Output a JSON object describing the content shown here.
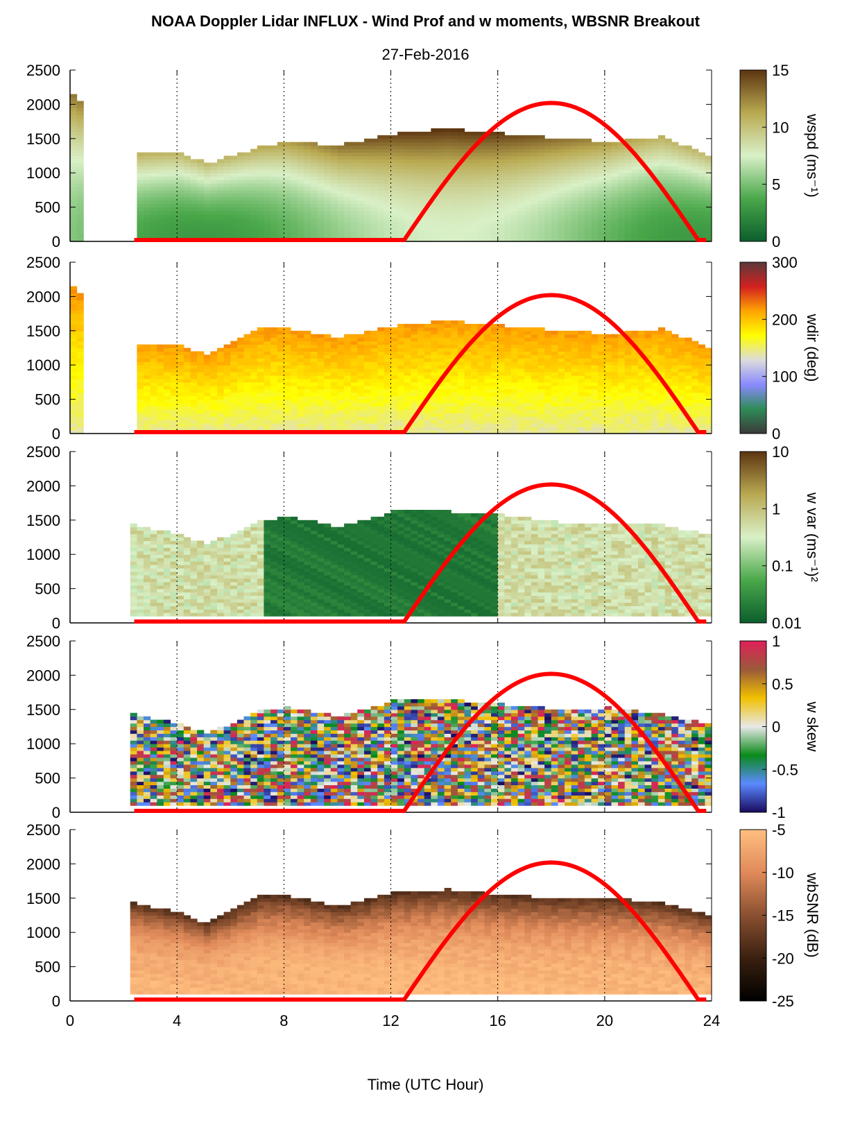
{
  "title": "NOAA Doppler Lidar INFLUX - Wind Prof and w moments, WBSNR Breakout",
  "subtitle": "27-Feb-2016",
  "chart_data": {
    "type": "heatmap",
    "xlabel": "Time (UTC Hour)",
    "xlim": [
      0,
      24
    ],
    "xticks": [
      "0",
      "4",
      "8",
      "12",
      "16",
      "20",
      "24"
    ],
    "ylim": [
      0,
      2500
    ],
    "yticks": [
      "0",
      "500",
      "1000",
      "1500",
      "2000",
      "2500"
    ],
    "grid": "vertical dotted lines at 4-hour intervals",
    "solar_elevation_curve": {
      "color": "#ff0000",
      "sunrise_hour": 12.5,
      "peak_hour": 18,
      "sunset_hour": 23.5,
      "peak_height": 2000
    },
    "panels": [
      {
        "name": "wspd",
        "colorbar_label": "wspd (ms⁻¹)",
        "colorbar_ticks": [
          "0",
          "5",
          "10",
          "15"
        ],
        "colormap": [
          "#0b5e2c",
          "#4aa84a",
          "#d9f0c7",
          "#b9a951",
          "#5c3410"
        ],
        "boundary_layer_top": [
          [
            0,
            2100
          ],
          [
            2.3,
            1290
          ],
          [
            4,
            1260
          ],
          [
            5,
            1120
          ],
          [
            7,
            1350
          ],
          [
            8,
            1430
          ],
          [
            10,
            1380
          ],
          [
            12,
            1540
          ],
          [
            14,
            1620
          ],
          [
            16,
            1550
          ],
          [
            18,
            1490
          ],
          [
            20,
            1430
          ],
          [
            22,
            1500
          ],
          [
            24,
            1200
          ]
        ]
      },
      {
        "name": "wdir",
        "colorbar_label": "wdir (deg)",
        "colorbar_ticks": [
          "0",
          "100",
          "200",
          "300"
        ],
        "colormap": [
          "#3a3a3a",
          "#2e8b57",
          "#8a8aff",
          "#dcdcdc",
          "#ffff00",
          "#ffa500",
          "#d32020",
          "#5a3a3a"
        ],
        "boundary_layer_top": [
          [
            0,
            2100
          ],
          [
            2.3,
            1290
          ],
          [
            4,
            1260
          ],
          [
            5,
            1120
          ],
          [
            7,
            1500
          ],
          [
            8,
            1500
          ],
          [
            10,
            1380
          ],
          [
            12,
            1540
          ],
          [
            14,
            1620
          ],
          [
            16,
            1550
          ],
          [
            18,
            1490
          ],
          [
            20,
            1430
          ],
          [
            22,
            1500
          ],
          [
            24,
            1200
          ]
        ]
      },
      {
        "name": "w var",
        "colorbar_label": "w var (ms⁻¹)²",
        "colorbar_ticks": [
          "0.01",
          "0.1",
          "1",
          "10"
        ],
        "colormap": [
          "#0b5e2c",
          "#4aa84a",
          "#d9f0c7",
          "#b9a951",
          "#5c3410"
        ],
        "boundary_layer_top": [
          [
            2.3,
            1400
          ],
          [
            4,
            1260
          ],
          [
            5,
            1120
          ],
          [
            7,
            1450
          ],
          [
            8,
            1520
          ],
          [
            10,
            1380
          ],
          [
            12,
            1600
          ],
          [
            14,
            1600
          ],
          [
            16,
            1550
          ],
          [
            18,
            1450
          ],
          [
            20,
            1430
          ],
          [
            22,
            1400
          ],
          [
            24,
            1250
          ]
        ]
      },
      {
        "name": "w skew",
        "colorbar_label": "w skew",
        "colorbar_ticks": [
          "-1",
          "-0.5",
          "0",
          "0.5",
          "1"
        ],
        "colormap": [
          "#1a0a5e",
          "#5a8aff",
          "#0a8a1a",
          "#e8e8e8",
          "#f0c000",
          "#9a5a3a",
          "#e0205a"
        ],
        "boundary_layer_top": [
          [
            2.3,
            1400
          ],
          [
            4,
            1260
          ],
          [
            5,
            1120
          ],
          [
            7,
            1450
          ],
          [
            8,
            1500
          ],
          [
            10,
            1380
          ],
          [
            12,
            1600
          ],
          [
            14,
            1620
          ],
          [
            16,
            1550
          ],
          [
            18,
            1490
          ],
          [
            20,
            1500
          ],
          [
            22,
            1400
          ],
          [
            24,
            1250
          ]
        ]
      },
      {
        "name": "wbSNR",
        "colorbar_label": "wbSNR (dB)",
        "colorbar_ticks": [
          "-25",
          "-20",
          "-15",
          "-10",
          "-5"
        ],
        "colormap": [
          "#000000",
          "#3a2010",
          "#8a5030",
          "#e08a5a",
          "#ffbf80"
        ],
        "boundary_layer_top": [
          [
            2.3,
            1400
          ],
          [
            4,
            1260
          ],
          [
            5,
            1100
          ],
          [
            7,
            1500
          ],
          [
            8,
            1520
          ],
          [
            10,
            1350
          ],
          [
            12,
            1550
          ],
          [
            14,
            1600
          ],
          [
            16,
            1520
          ],
          [
            18,
            1480
          ],
          [
            20,
            1480
          ],
          [
            22,
            1400
          ],
          [
            24,
            1200
          ]
        ]
      }
    ]
  }
}
